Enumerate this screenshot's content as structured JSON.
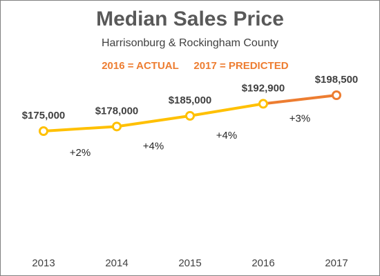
{
  "chart_data": {
    "type": "line",
    "title": "Median Sales Price",
    "subtitle": "Harrisonburg & Rockingham County",
    "notes": [
      {
        "text": "2016 = ACTUAL",
        "color": "#ed7d31"
      },
      {
        "text": "2017 = PREDICTED",
        "color": "#ed7d31"
      }
    ],
    "categories": [
      "2013",
      "2014",
      "2015",
      "2016",
      "2017"
    ],
    "values": [
      175000,
      178000,
      185000,
      192900,
      198500
    ],
    "data_labels": [
      "$175,000",
      "$178,000",
      "$185,000",
      "$192,900",
      "$198,500"
    ],
    "changes": [
      "+2%",
      "+4%",
      "+4%",
      "+3%"
    ],
    "segment_colors": {
      "actual": "#ffc000",
      "predicted": "#ed7d31"
    },
    "ylim": [
      160000,
      200000
    ],
    "grid": false,
    "legend": "none",
    "xlabel": "",
    "ylabel": ""
  }
}
